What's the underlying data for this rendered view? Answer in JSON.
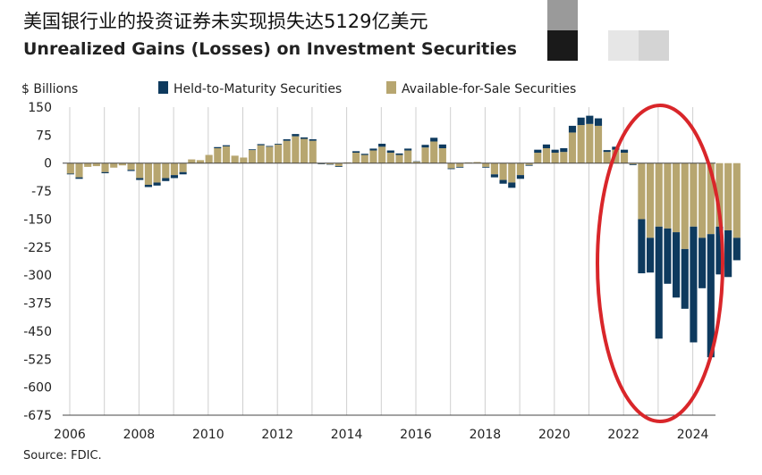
{
  "header": {
    "title_cn": "美国银行业的投资证券未实现损失达5129亿美元",
    "title_en": "Unrealized Gains (Losses) on Investment Securities"
  },
  "footer": {
    "source": "Source: FDIC."
  },
  "chart_data": {
    "type": "bar",
    "stacked": true,
    "title": "Unrealized Gains (Losses) on Investment Securities",
    "ylabel": "$ Billions",
    "xlabel": "",
    "ylim": [
      -675,
      150
    ],
    "yticks": [
      150,
      75,
      0,
      -75,
      -150,
      -225,
      -300,
      -375,
      -450,
      -525,
      -600,
      -675
    ],
    "xticks": [
      "2006",
      "2008",
      "2010",
      "2012",
      "2014",
      "2016",
      "2018",
      "2020",
      "2022",
      "2024"
    ],
    "x_start_year": 2006,
    "quarters_per_year": 4,
    "legend": [
      "Held-to-Maturity Securities",
      "Available-for-Sale Securities"
    ],
    "legend_position": "top",
    "colors": {
      "htm": "#0e3a5e",
      "afs": "#b7a670",
      "highlight": "#d9262a",
      "grid": "#cfcfcf"
    },
    "series": [
      {
        "name": "Available-for-Sale Securities",
        "values": [
          -28,
          -38,
          -10,
          -8,
          -24,
          -12,
          -6,
          -18,
          -40,
          -58,
          -52,
          -40,
          -32,
          -24,
          10,
          8,
          22,
          40,
          45,
          20,
          15,
          35,
          48,
          44,
          50,
          60,
          72,
          65,
          60,
          -2,
          -3,
          -8,
          2,
          28,
          22,
          34,
          44,
          28,
          22,
          34,
          4,
          42,
          58,
          40,
          -14,
          -10,
          2,
          3,
          -10,
          -30,
          -45,
          -52,
          -32,
          -5,
          28,
          40,
          28,
          30,
          82,
          102,
          105,
          100,
          30,
          36,
          28,
          -3,
          -150,
          -200,
          -170,
          -175,
          -185,
          -230,
          -170,
          -200,
          -190,
          -170,
          -180,
          -200
        ],
        "_comment": "first 66 quarters: 2006 Q1 through 2022 Q2"
      },
      {
        "name": "Held-to-Maturity Securities",
        "values": [
          -2,
          -4,
          0,
          0,
          -3,
          0,
          0,
          -3,
          -5,
          -6,
          -8,
          -8,
          -8,
          -6,
          0,
          0,
          0,
          3,
          3,
          0,
          0,
          2,
          3,
          2,
          2,
          4,
          6,
          4,
          4,
          -1,
          -1,
          -2,
          0,
          4,
          3,
          5,
          8,
          6,
          4,
          5,
          1,
          7,
          10,
          10,
          -2,
          -2,
          0,
          0,
          -2,
          -8,
          -10,
          -14,
          -10,
          -2,
          8,
          10,
          8,
          10,
          18,
          20,
          22,
          20,
          5,
          8,
          8,
          -2,
          -145,
          -93,
          -300,
          -148,
          -175,
          -160,
          -310,
          -135,
          -330,
          -128,
          -125,
          -60
        ]
      }
    ]
  }
}
